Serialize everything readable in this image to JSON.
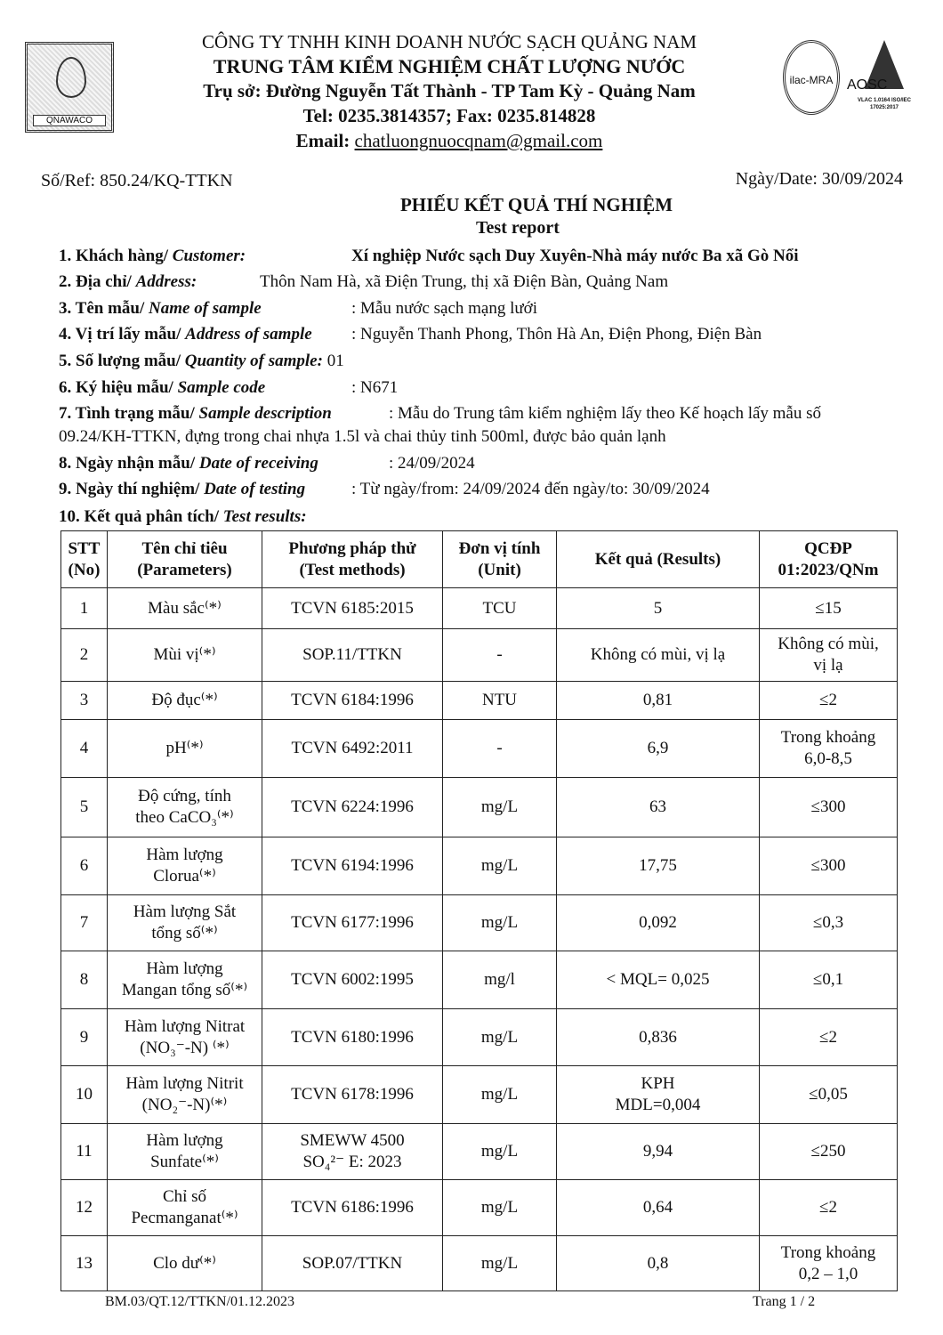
{
  "header": {
    "company": "CÔNG TY TNHH KINH DOANH NƯỚC SẠCH QUẢNG NAM",
    "center": "TRUNG TÂM KIỂM NGHIỆM CHẤT LƯỢNG NƯỚC",
    "address": "Trụ sở: Đường Nguyễn Tất Thành - TP Tam Kỳ -  Quảng Nam",
    "phone": "Tel: 0235.3814357; Fax: 0235.814828",
    "email_label": "Email: ",
    "email": "chatluongnuocqnam@gmail.com",
    "logo_text": "QNAWACO",
    "ilac_text": "ilac-MRA",
    "aosc_text": "AOSC",
    "aosc_sub": "VLAC 1.0164 ISO/IEC 17025:2017"
  },
  "ref": "Số/Ref: 850.24/KQ-TTKN",
  "date": "Ngày/Date: 30/09/2024",
  "title": "PHIẾU KẾT QUẢ THÍ NGHIỆM",
  "subtitle": "Test report",
  "fields": [
    {
      "label": "1. Khách hàng/ ",
      "en": "Customer:",
      "value": "Xí nghiệp Nước sạch Duy Xuyên-Nhà máy nước Ba xã Gò Nổi"
    },
    {
      "label": "2. Địa chỉ/ ",
      "en": "Address:",
      "value": "Thôn Nam Hà, xã Điện Trung, thị xã Điện Bàn, Quảng Nam"
    },
    {
      "label": "3. Tên mẫu/ ",
      "en": "Name of sample",
      "value": ": Mẫu nước sạch mạng lưới"
    },
    {
      "label": "4. Vị trí lấy mẫu/ ",
      "en": "Address of sample",
      "value": ": Nguyễn Thanh Phong, Thôn Hà An, Điện Phong, Điện Bàn"
    },
    {
      "label": "5. Số lượng mẫu/ ",
      "en": "Quantity of sample:",
      "value": " 01"
    },
    {
      "label": "6. Ký hiệu mẫu/ ",
      "en": "Sample code",
      "value": ": N671"
    },
    {
      "label": "7. Tình trạng mẫu/ ",
      "en": "Sample description",
      "value": ": Mẫu do Trung tâm kiểm nghiệm lấy theo Kế hoạch lấy mẫu số",
      "value2": "09.24/KH-TTKN, đựng trong chai nhựa 1.5l và chai thủy tinh 500ml, được bảo quản lạnh"
    },
    {
      "label": "8. Ngày nhận mẫu/ ",
      "en": "Date of receiving",
      "value": ": 24/09/2024"
    },
    {
      "label": "9. Ngày thí nghiệm/ ",
      "en": "Date of testing",
      "value": ": Từ ngày/from: 24/09/2024  đến ngày/to: 30/09/2024"
    },
    {
      "label": "10. Kết quả phân tích/ ",
      "en": "Test results:",
      "value": ""
    }
  ],
  "table": {
    "headers": [
      [
        "STT",
        "(No)"
      ],
      [
        "Tên chỉ tiêu",
        "(Parameters)"
      ],
      [
        "Phương pháp thử",
        "(Test methods)"
      ],
      [
        "Đơn vị tính",
        "(Unit)"
      ],
      [
        "Kết quả (Results)"
      ],
      [
        "QCĐP",
        "01:2023/QNm"
      ]
    ],
    "rows": [
      {
        "no": "1",
        "param": [
          "Màu sắc⁽*⁾"
        ],
        "method": [
          "TCVN 6185:2015"
        ],
        "unit": "TCU",
        "result": [
          "5"
        ],
        "limit": [
          "≤15"
        ]
      },
      {
        "no": "2",
        "param": [
          "Mùi vị⁽*⁾"
        ],
        "method": [
          "SOP.11/TTKN"
        ],
        "unit": "-",
        "result": [
          "Không có mùi, vị lạ"
        ],
        "limit": [
          "Không có mùi,",
          "vị lạ"
        ]
      },
      {
        "no": "3",
        "param": [
          "Độ đục⁽*⁾"
        ],
        "method": [
          "TCVN 6184:1996"
        ],
        "unit": "NTU",
        "result": [
          "0,81"
        ],
        "limit": [
          "≤2"
        ]
      },
      {
        "no": "4",
        "param": [
          "pH⁽*⁾"
        ],
        "method": [
          "TCVN 6492:2011"
        ],
        "unit": "-",
        "result": [
          "6,9"
        ],
        "limit": [
          "Trong khoảng",
          "6,0-8,5"
        ]
      },
      {
        "no": "5",
        "param": [
          "Độ cứng, tính",
          "theo CaCO₃⁽*⁾"
        ],
        "method": [
          "TCVN 6224:1996"
        ],
        "unit": "mg/L",
        "result": [
          "63"
        ],
        "limit": [
          "≤300"
        ]
      },
      {
        "no": "6",
        "param": [
          "Hàm lượng",
          "Clorua⁽*⁾"
        ],
        "method": [
          "TCVN 6194:1996"
        ],
        "unit": "mg/L",
        "result": [
          "17,75"
        ],
        "limit": [
          "≤300"
        ]
      },
      {
        "no": "7",
        "param": [
          "Hàm lượng Sắt",
          "tổng số⁽*⁾"
        ],
        "method": [
          "TCVN 6177:1996"
        ],
        "unit": "mg/L",
        "result": [
          "0,092"
        ],
        "limit": [
          "≤0,3"
        ]
      },
      {
        "no": "8",
        "param": [
          "Hàm lượng",
          "Mangan tổng số⁽*⁾"
        ],
        "method": [
          "TCVN 6002:1995"
        ],
        "unit": "mg/l",
        "result": [
          "< MQL= 0,025"
        ],
        "limit": [
          "≤0,1"
        ]
      },
      {
        "no": "9",
        "param": [
          "Hàm lượng Nitrat",
          "(NO₃⁻-N) ⁽*⁾"
        ],
        "method": [
          "TCVN 6180:1996"
        ],
        "unit": "mg/L",
        "result": [
          "0,836"
        ],
        "limit": [
          "≤2"
        ]
      },
      {
        "no": "10",
        "param": [
          "Hàm lượng Nitrit",
          "(NO₂⁻-N)⁽*⁾"
        ],
        "method": [
          "TCVN 6178:1996"
        ],
        "unit": "mg/L",
        "result": [
          "KPH",
          "MDL=0,004"
        ],
        "limit": [
          "≤0,05"
        ]
      },
      {
        "no": "11",
        "param": [
          "Hàm lượng",
          "Sunfate⁽*⁾"
        ],
        "method": [
          "SMEWW 4500",
          "SO₄²⁻ E: 2023"
        ],
        "unit": "mg/L",
        "result": [
          "9,94"
        ],
        "limit": [
          "≤250"
        ]
      },
      {
        "no": "12",
        "param": [
          "Chỉ số",
          "Pecmanganat⁽*⁾"
        ],
        "method": [
          "TCVN 6186:1996"
        ],
        "unit": "mg/L",
        "result": [
          "0,64"
        ],
        "limit": [
          "≤2"
        ]
      },
      {
        "no": "13",
        "param": [
          "Clo dư⁽*⁾"
        ],
        "method": [
          "SOP.07/TTKN"
        ],
        "unit": "mg/L",
        "result": [
          "0,8"
        ],
        "limit": [
          "Trong khoảng",
          "0,2 – 1,0"
        ]
      }
    ]
  },
  "footer": {
    "form_code": "BM.03/QT.12/TTKN/01.12.2023",
    "page": "Trang 1 / 2"
  }
}
